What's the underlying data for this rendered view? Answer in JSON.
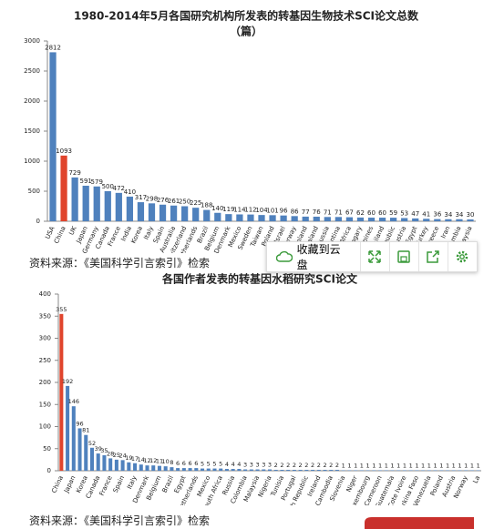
{
  "chart_data": [
    {
      "type": "bar",
      "title": "1980-2014年5月各国研究机构所发表的转基因生物技术SCI论文总数",
      "subtitle": "（篇）",
      "categories": [
        "USA",
        "China",
        "UK",
        "Japan",
        "Germany",
        "Canada",
        "France",
        "India",
        "Korea",
        "Italy",
        "Spain",
        "Australia",
        "Switzerland",
        "Netherlands",
        "Brazil",
        "Belgium",
        "Denmark",
        "Mexico",
        "Sweden",
        "Taiwan",
        "Poland",
        "Israel",
        "Norway",
        "Finland",
        "New Zealand",
        "Russia",
        "Argentina",
        "South Africa",
        "Hungary",
        "Philippines",
        "Thailand",
        "Czech Republic",
        "Austria",
        "Egypt",
        "Turkey",
        "Greece",
        "Iran",
        "Colombia",
        "Malaysia"
      ],
      "values": [
        2812,
        1093,
        729,
        591,
        579,
        500,
        472,
        410,
        317,
        298,
        276,
        261,
        250,
        225,
        188,
        140,
        119,
        114,
        112,
        104,
        101,
        96,
        86,
        77,
        76,
        71,
        71,
        67,
        62,
        60,
        60,
        59,
        53,
        47,
        41,
        36,
        34,
        34,
        30
      ],
      "color": "#4f81bd",
      "highlight_index": 1,
      "highlight_color": "#e0442c",
      "ylim": [
        0,
        3000
      ],
      "yticks": [
        0,
        500,
        1000,
        1500,
        2000,
        2500,
        3000
      ]
    },
    {
      "type": "bar",
      "title": "各国作者发表的转基因水稻研究SCI论文",
      "categories": [
        "China",
        null,
        "Japan",
        null,
        "Korea",
        null,
        "Canada",
        null,
        "France",
        null,
        "Spain",
        null,
        "Italy",
        null,
        "Denmark",
        null,
        "Belgium",
        null,
        "Brazil",
        null,
        "Egypt",
        null,
        "Netherlands",
        null,
        "Mexico",
        null,
        "South Africa",
        null,
        "Russia",
        null,
        "Colombia",
        null,
        "Malaysia",
        null,
        "Nigeria",
        null,
        "Tunisia",
        null,
        "Portugal",
        null,
        "Czech Republic",
        null,
        "Ireland",
        null,
        "Cambodia",
        null,
        "Slovenia",
        null,
        "Niger",
        null,
        "Luxembourg",
        null,
        "Cameroon",
        null,
        "Guatemala",
        null,
        "Cote Ivoire",
        null,
        "Burkina Faso",
        null,
        "Venezuela",
        null,
        "Poland",
        null,
        "Austria",
        null,
        "Norway",
        null,
        "La"
      ],
      "values": [
        355,
        192,
        146,
        96,
        81,
        52,
        39,
        35,
        28,
        25,
        24,
        19,
        17,
        14,
        12,
        12,
        11,
        10,
        8,
        6,
        6,
        6,
        6,
        5,
        5,
        5,
        5,
        4,
        4,
        4,
        3,
        3,
        3,
        3,
        3,
        2,
        2,
        2,
        2,
        2,
        2,
        2,
        2,
        2,
        2,
        2,
        1,
        1,
        1,
        1,
        1,
        1,
        1,
        1,
        1,
        1,
        1,
        1,
        1,
        1,
        1,
        1,
        1,
        1,
        1,
        1,
        1,
        1,
        1
      ],
      "color": "#4f81bd",
      "highlight_index": 0,
      "highlight_color": "#e0442c",
      "ylim": [
        0,
        400
      ],
      "yticks": [
        0,
        50,
        100,
        150,
        200,
        250,
        300,
        350,
        400
      ]
    }
  ],
  "captions": [
    "资料来源：《美国科学引言索引》检索",
    "资料来源：《美国科学引言索引》检索"
  ],
  "toolbar": {
    "save": "收藏到云盘"
  }
}
